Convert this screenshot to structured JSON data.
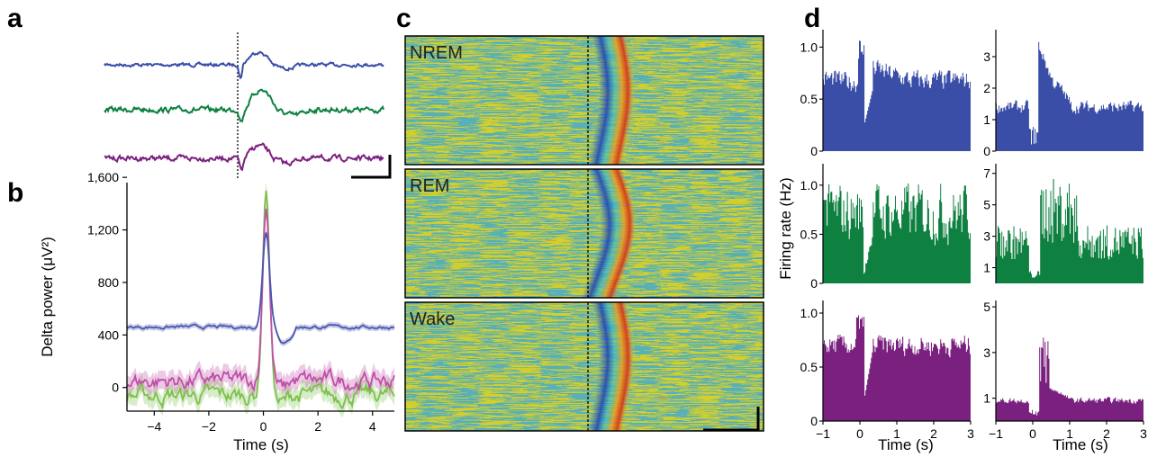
{
  "panels": {
    "a": "a",
    "b": "b",
    "c": "c",
    "d": "d"
  },
  "colors": {
    "nrem": "#3a4ea8",
    "rem": "#0e8040",
    "wake": "#7a2180",
    "b_nrem": "#4a55b0",
    "b_rem": "#c04fa8",
    "b_wake": "#7cc04a"
  },
  "chart_data": [
    {
      "panel": "a",
      "type": "line",
      "series": [
        {
          "name": "",
          "color": "#3a4ea8"
        },
        {
          "name": "",
          "color": "#0e8040"
        },
        {
          "name": "",
          "color": "#7a2180"
        }
      ]
    },
    {
      "panel": "b",
      "type": "line",
      "xlabel": "Time (s)",
      "ylabel": "Delta power (μV²)",
      "xlim": [
        -5,
        4.8
      ],
      "ylim": [
        -180,
        1560
      ],
      "xticks": [
        -4,
        -2,
        0,
        2,
        4
      ],
      "xtick_labels": [
        "−4",
        "−2",
        "0",
        "2",
        "4"
      ],
      "yticks": [
        0,
        400,
        800,
        1200,
        1600
      ],
      "ytick_labels": [
        "0",
        "400",
        "800",
        "1,200",
        "1,600"
      ],
      "series": [
        {
          "name": "",
          "color": "#4a55b0",
          "baseline": 460,
          "peak": 1180
        },
        {
          "name": "",
          "color": "#c04fa8",
          "baseline": 50,
          "peak": 1360
        },
        {
          "name": "",
          "color": "#7cc04a",
          "baseline": -60,
          "peak": 1500
        }
      ]
    },
    {
      "panel": "c",
      "type": "heatmap",
      "panels": [
        {
          "label": "NREM"
        },
        {
          "label": "REM"
        },
        {
          "label": "Wake"
        }
      ]
    },
    {
      "panel": "d",
      "type": "bar",
      "ylabel": "Firing rate (Hz)",
      "xlabel": "Time (s)",
      "xlim": [
        -1,
        3
      ],
      "xticks": [
        -1,
        0,
        1,
        2,
        3
      ],
      "xtick_labels": [
        "−1",
        "0",
        "1",
        "2",
        "3"
      ],
      "subplots": [
        {
          "row": 0,
          "col": 0,
          "color": "#3a4ea8",
          "ylim": [
            0,
            1.15
          ],
          "yticks": [
            0,
            0.5,
            1.0
          ],
          "ytick_labels": [
            "0",
            "0.5",
            "1.0"
          ],
          "baseline": 0.68,
          "peak": 1.1,
          "dip": 0.25
        },
        {
          "row": 0,
          "col": 1,
          "color": "#3a4ea8",
          "ylim": [
            0,
            3.8
          ],
          "yticks": [
            0,
            1,
            2,
            3
          ],
          "ytick_labels": [
            "0",
            "1",
            "2",
            "3"
          ],
          "baseline": 1.4,
          "peak": 3.4,
          "dip": 0.2
        },
        {
          "row": 1,
          "col": 0,
          "color": "#0e8040",
          "ylim": [
            0,
            1.2
          ],
          "yticks": [
            0,
            0.5,
            1.0
          ],
          "ytick_labels": [
            "0",
            "0.5",
            "1.0"
          ],
          "baseline": 0.72,
          "peak": 0.85,
          "dip": 0.05
        },
        {
          "row": 1,
          "col": 1,
          "color": "#0e8040",
          "ylim": [
            0,
            7.5
          ],
          "yticks": [
            1,
            3,
            5,
            7
          ],
          "ytick_labels": [
            "1",
            "3",
            "5",
            "7"
          ],
          "baseline": 2.2,
          "peak": 7.0,
          "dip": 0.3
        },
        {
          "row": 2,
          "col": 0,
          "color": "#7a2180",
          "ylim": [
            0,
            1.1
          ],
          "yticks": [
            0,
            0.5,
            1.0
          ],
          "ytick_labels": [
            "0",
            "0.5",
            "1.0"
          ],
          "baseline": 0.7,
          "peak": 0.98,
          "dip": 0.2
        },
        {
          "row": 2,
          "col": 1,
          "color": "#7a2180",
          "ylim": [
            0,
            5.2
          ],
          "yticks": [
            1,
            3,
            5
          ],
          "ytick_labels": [
            "1",
            "3",
            "5"
          ],
          "baseline": 0.9,
          "peak": 4.2,
          "dip": 0.2
        }
      ]
    }
  ]
}
